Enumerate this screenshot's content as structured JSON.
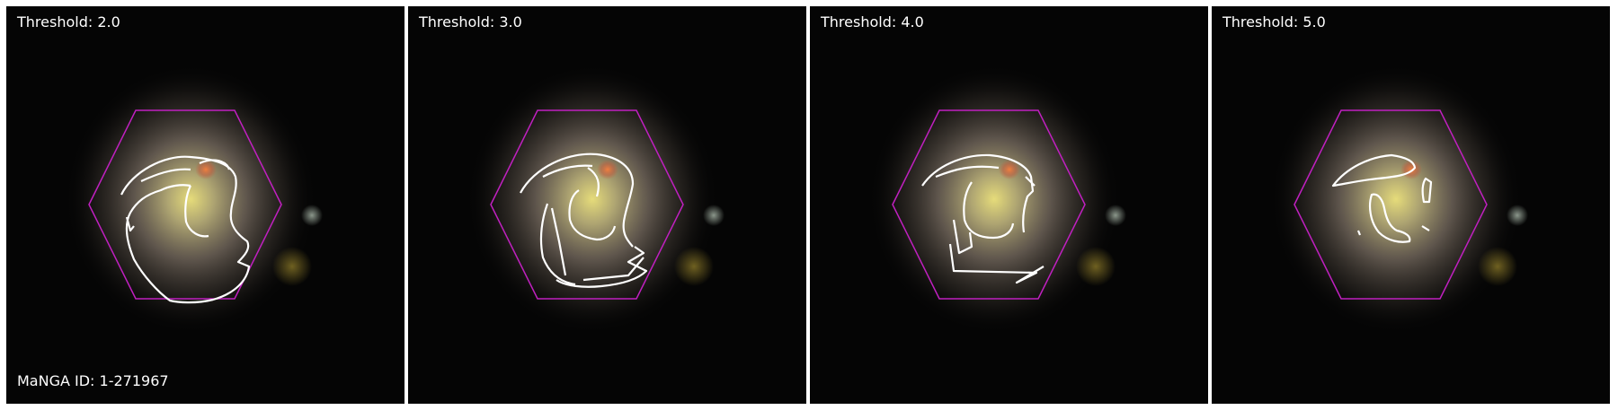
{
  "figure": {
    "panels": [
      {
        "label": "Threshold: 2.0"
      },
      {
        "label": "Threshold: 3.0"
      },
      {
        "label": "Threshold: 4.0"
      },
      {
        "label": "Threshold: 5.0"
      }
    ],
    "id_label": "MaNGA ID: 1-271967"
  },
  "colors": {
    "background": "#050505",
    "hexagon": "#c020c0",
    "contour": "#ffffff",
    "galaxy_core": "#d8cc78",
    "knot": "#e07040"
  }
}
